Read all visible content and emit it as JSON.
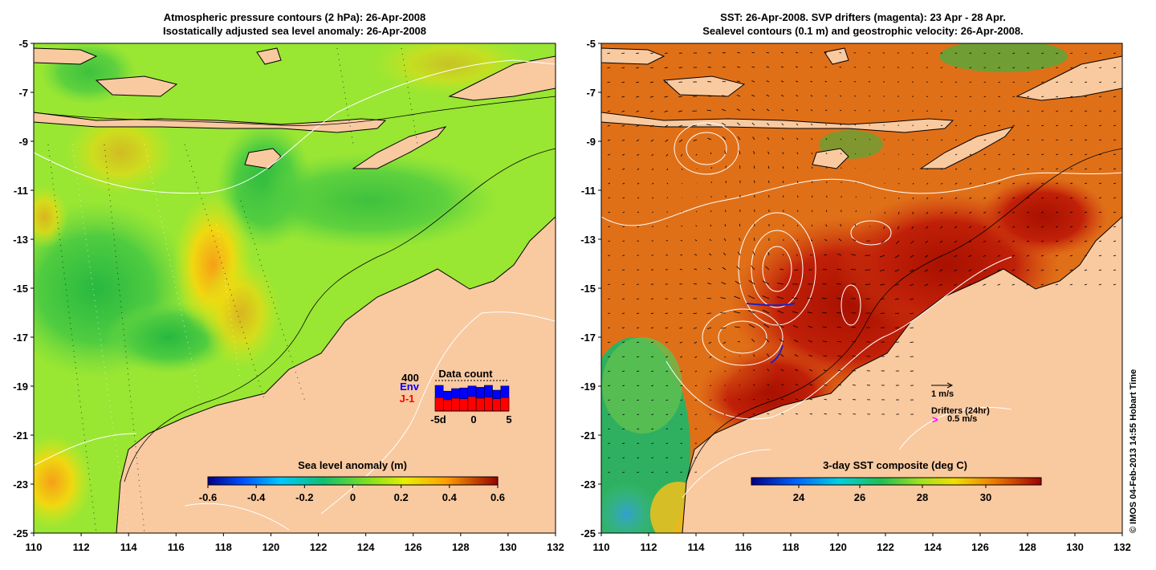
{
  "left_panel": {
    "title_line1": "Atmospheric pressure contours (2 hPa): 26-Apr-2008",
    "title_line2": "Isostatically adjusted sea level anomaly: 26-Apr-2008",
    "x_ticks": [
      "110",
      "112",
      "114",
      "116",
      "118",
      "120",
      "122",
      "124",
      "126",
      "128",
      "130",
      "132"
    ],
    "y_ticks": [
      "-5",
      "-7",
      "-9",
      "-11",
      "-13",
      "-15",
      "-17",
      "-19",
      "-21",
      "-23",
      "-25"
    ],
    "colorbar": {
      "title": "Sea level anomaly (m)",
      "ticks": [
        "-0.6",
        "-0.4",
        "-0.2",
        "0",
        "0.2",
        "0.4",
        "0.6"
      ],
      "range": [
        -0.6,
        0.6
      ]
    },
    "data_count": {
      "title": "Data count",
      "max_label": "400",
      "legend_env": "Env",
      "legend_j1": "J-1",
      "x_ticks": [
        "-5d",
        "0",
        "5"
      ],
      "env_color": "#0000ff",
      "j1_color": "#ff0000",
      "bars": [
        {
          "env": 0.8,
          "j1": 0.42
        },
        {
          "env": 0.62,
          "j1": 0.35
        },
        {
          "env": 0.7,
          "j1": 0.4
        },
        {
          "env": 0.72,
          "j1": 0.38
        },
        {
          "env": 0.78,
          "j1": 0.45
        },
        {
          "env": 0.74,
          "j1": 0.4
        },
        {
          "env": 0.8,
          "j1": 0.43
        },
        {
          "env": 0.65,
          "j1": 0.38
        },
        {
          "env": 0.78,
          "j1": 0.42
        }
      ]
    }
  },
  "right_panel": {
    "title_line1": "SST: 26-Apr-2008. SVP drifters (magenta): 23 Apr - 28 Apr.",
    "title_line2": "Sealevel contours (0.1 m) and geostrophic velocity: 26-Apr-2008.",
    "x_ticks": [
      "110",
      "112",
      "114",
      "116",
      "118",
      "120",
      "122",
      "124",
      "126",
      "128",
      "130",
      "132"
    ],
    "y_ticks": [
      "-5",
      "-7",
      "-9",
      "-11",
      "-13",
      "-15",
      "-17",
      "-19",
      "-21",
      "-23",
      "-25"
    ],
    "velocity_scale_label": "1 m/s",
    "drifters_label": "Drifters (24hr)",
    "drifter_scale_label": "0.5 m/s",
    "drifter_color": "#ff00ff",
    "colorbar": {
      "title": "3-day SST composite (deg C)",
      "ticks": [
        "24",
        "26",
        "28",
        "30"
      ]
    }
  },
  "credit": "© IMOS 04-Feb-2013 14:55 Hobart Time",
  "colors": {
    "land": "#f9c9a0",
    "ocean_mid": "#99e633",
    "sst_hot": "#c11a05"
  }
}
